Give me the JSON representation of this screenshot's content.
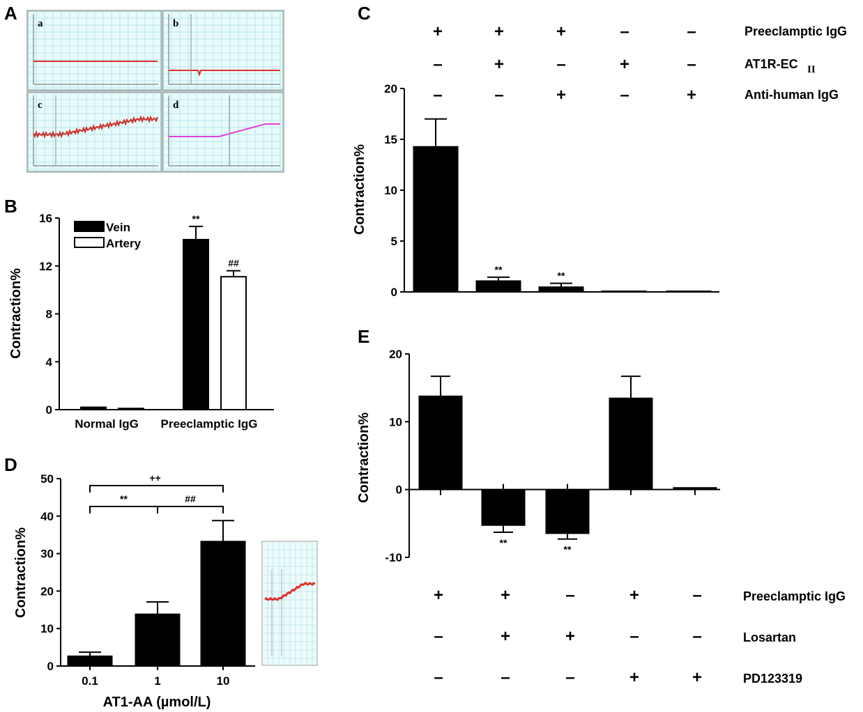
{
  "panels": {
    "A": {
      "label": "A",
      "traces": [
        {
          "letter": "a",
          "color": "#e0302a",
          "shape": "flat"
        },
        {
          "letter": "b",
          "color": "#e0302a",
          "shape": "flat-spike"
        },
        {
          "letter": "c",
          "color": "#cc2b22",
          "shape": "rise-noisy"
        },
        {
          "letter": "d",
          "color": "#e040e0",
          "shape": "rise-smooth"
        }
      ]
    },
    "B": {
      "label": "B"
    },
    "C": {
      "label": "C"
    },
    "D": {
      "label": "D",
      "inset_trace_color": "#e0302a"
    },
    "E": {
      "label": "E"
    }
  },
  "chart_data": [
    {
      "panel": "B",
      "type": "bar",
      "categories": [
        "Normal IgG",
        "Preeclamptic IgG"
      ],
      "series": [
        {
          "name": "Vein",
          "color": "#000000",
          "values": [
            0.2,
            14.2
          ],
          "errors": [
            0.05,
            1.1
          ],
          "annotations": [
            "",
            "**"
          ]
        },
        {
          "name": "Artery",
          "color": "#ffffff",
          "values": [
            0.1,
            11.1
          ],
          "errors": [
            0.03,
            0.5
          ],
          "annotations": [
            "",
            "##"
          ]
        }
      ],
      "ylabel": "Contraction%",
      "ylim": [
        0,
        16
      ],
      "yticks": [
        "0",
        "4",
        "8",
        "12",
        "16"
      ],
      "legend_position": "top-left"
    },
    {
      "panel": "C",
      "type": "bar",
      "values": [
        14.3,
        1.1,
        0.5,
        0.1,
        0.1
      ],
      "errors": [
        2.7,
        0.35,
        0.35,
        0,
        0
      ],
      "annotations": [
        "",
        "**",
        "**",
        "",
        ""
      ],
      "ylabel": "Contraction%",
      "ylim": [
        0,
        20
      ],
      "yticks": [
        "0",
        "5",
        "10",
        "15",
        "20"
      ],
      "conditions": [
        {
          "label": "Preeclamptic IgG",
          "signs": [
            "+",
            "+",
            "+",
            "–",
            "–"
          ]
        },
        {
          "label": "AT1R-EC",
          "label_sub": "II",
          "signs": [
            "–",
            "+",
            "–",
            "+",
            "–"
          ]
        },
        {
          "label": "Anti-human IgG",
          "signs": [
            "–",
            "–",
            "+",
            "–",
            "+"
          ]
        }
      ]
    },
    {
      "panel": "D",
      "type": "bar",
      "categories": [
        "0.1",
        "1",
        "10"
      ],
      "values": [
        2.7,
        13.9,
        33.3
      ],
      "errors": [
        1.0,
        3.2,
        5.5
      ],
      "ylabel": "Contraction%",
      "xlabel": "AT1-AA (µmol/L)",
      "ylim": [
        0,
        50
      ],
      "yticks": [
        "0",
        "10",
        "20",
        "30",
        "40",
        "50"
      ],
      "comparisons": [
        {
          "from": 0,
          "to": 1,
          "label": "**"
        },
        {
          "from": 1,
          "to": 2,
          "label": "##"
        },
        {
          "from": 0,
          "to": 2,
          "label": "++"
        }
      ]
    },
    {
      "panel": "E",
      "type": "bar",
      "values": [
        13.8,
        -5.3,
        -6.5,
        13.5,
        0.3
      ],
      "errors": [
        2.9,
        1.0,
        0.8,
        3.2,
        0.1
      ],
      "annotations": [
        "",
        "**",
        "**",
        "",
        ""
      ],
      "ylabel": "Contraction%",
      "ylim": [
        -10,
        20
      ],
      "yticks": [
        "-10",
        "0",
        "10",
        "20"
      ],
      "conditions": [
        {
          "label": "Preeclamptic IgG",
          "signs": [
            "+",
            "+",
            "–",
            "+",
            "–"
          ]
        },
        {
          "label": "Losartan",
          "signs": [
            "–",
            "+",
            "+",
            "–",
            "–"
          ]
        },
        {
          "label": "PD123319",
          "signs": [
            "–",
            "–",
            "–",
            "+",
            "+"
          ]
        }
      ]
    }
  ]
}
